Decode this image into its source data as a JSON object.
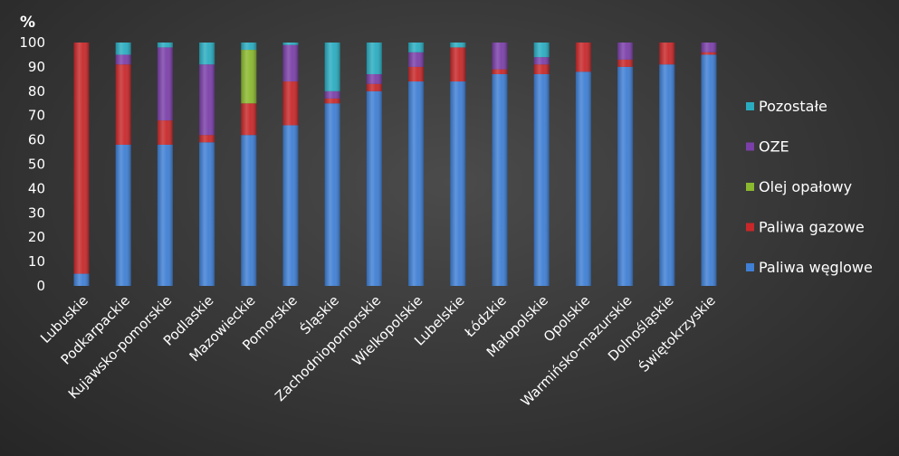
{
  "chart_data": {
    "type": "bar",
    "stacked": true,
    "ylabel": "%",
    "ylim": [
      0,
      100
    ],
    "yticks": [
      0,
      10,
      20,
      30,
      40,
      50,
      60,
      70,
      80,
      90,
      100
    ],
    "grid": false,
    "legend_position": "right",
    "categories": [
      "Lubuskie",
      "Podkarpackie",
      "Kujawsko-pomorskie",
      "Podlaskie",
      "Mazowieckie",
      "Pomorskie",
      "Śląskie",
      "Zachodniopomorskie",
      "Wielkopolskie",
      "Lubelskie",
      "Łódzkie",
      "Małopolskie",
      "Opolskie",
      "Warmińsko-mazurskie",
      "Dolnośląskie",
      "Świętokrzyskie"
    ],
    "series": [
      {
        "name": "Paliwa węglowe",
        "color": "#3f7fd4",
        "values": [
          5,
          58,
          58,
          59,
          62,
          66,
          75,
          80,
          84,
          84,
          87,
          87,
          88,
          90,
          91,
          95
        ]
      },
      {
        "name": "Paliwa gazowe",
        "color": "#c8282a",
        "values": [
          95,
          33,
          10,
          3,
          13,
          18,
          2,
          3,
          6,
          14,
          2,
          4,
          12,
          3,
          9,
          1
        ]
      },
      {
        "name": "Olej opałowy",
        "color": "#8ab82e",
        "values": [
          0,
          0,
          0,
          0,
          22,
          0,
          0,
          0,
          0,
          0,
          0,
          0,
          0,
          0,
          0,
          0
        ]
      },
      {
        "name": "OZE",
        "color": "#7a3fa8",
        "values": [
          0,
          4,
          30,
          29,
          0,
          15,
          3,
          4,
          6,
          0,
          11,
          3,
          0,
          7,
          0,
          4
        ]
      },
      {
        "name": "Pozostałe",
        "color": "#2aacc0",
        "values": [
          0,
          5,
          2,
          9,
          3,
          1,
          20,
          13,
          4,
          2,
          0,
          6,
          0,
          0,
          0,
          0
        ]
      }
    ],
    "legend_order": [
      "Pozostałe",
      "OZE",
      "Olej opałowy",
      "Paliwa gazowe",
      "Paliwa węglowe"
    ]
  }
}
